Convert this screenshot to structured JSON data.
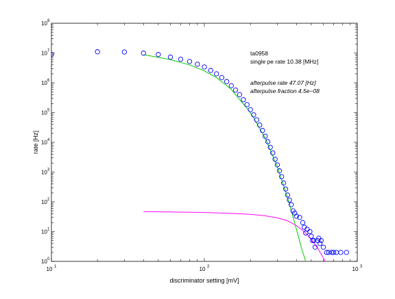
{
  "chart_data": {
    "type": "scatter",
    "title": "",
    "xlabel": "discriminator setting [mV]",
    "ylabel": "rate [Hz]",
    "xscale": "log",
    "yscale": "log",
    "xlim": [
      10,
      1000
    ],
    "ylim": [
      1,
      100000000
    ],
    "grid": false,
    "x_ticks": [
      {
        "base": "10",
        "exp": "1",
        "value": 10
      },
      {
        "base": "10",
        "exp": "2",
        "value": 100
      },
      {
        "base": "10",
        "exp": "3",
        "value": 1000
      }
    ],
    "y_ticks": [
      {
        "base": "10",
        "exp": "0",
        "value": 1
      },
      {
        "base": "10",
        "exp": "1",
        "value": 10
      },
      {
        "base": "10",
        "exp": "2",
        "value": 100
      },
      {
        "base": "10",
        "exp": "3",
        "value": 1000
      },
      {
        "base": "10",
        "exp": "4",
        "value": 10000
      },
      {
        "base": "10",
        "exp": "5",
        "value": 100000
      },
      {
        "base": "10",
        "exp": "6",
        "value": 1000000
      },
      {
        "base": "10",
        "exp": "7",
        "value": 10000000
      },
      {
        "base": "10",
        "exp": "8",
        "value": 100000000
      }
    ],
    "annotations": [
      "ta0958",
      "single pe rate 10.38 [MHz]",
      "afterpulse rate 47.07 [Hz]",
      "afterpulse fraction 4.5e−08"
    ],
    "series": [
      {
        "kind": "markers",
        "marker": "circle",
        "color": "#0000ff",
        "points": [
          [
            10,
            9000000
          ],
          [
            20,
            11000000
          ],
          [
            30,
            10800000
          ],
          [
            40,
            9900000
          ],
          [
            50,
            8900000
          ],
          [
            60,
            7300000
          ],
          [
            70,
            6200000
          ],
          [
            80,
            5200000
          ],
          [
            90,
            4200000
          ],
          [
            100,
            3400000
          ],
          [
            110,
            2600000
          ],
          [
            120,
            2000000
          ],
          [
            130,
            1500000
          ],
          [
            140,
            1100000
          ],
          [
            150,
            800000
          ],
          [
            160,
            570000
          ],
          [
            170,
            400000
          ],
          [
            180,
            270000
          ],
          [
            190,
            185000
          ],
          [
            200,
            125000
          ],
          [
            210,
            84000
          ],
          [
            220,
            57000
          ],
          [
            230,
            38000
          ],
          [
            240,
            25000
          ],
          [
            250,
            16000
          ],
          [
            260,
            10500
          ],
          [
            270,
            6800
          ],
          [
            280,
            4400
          ],
          [
            290,
            2700
          ],
          [
            300,
            1750
          ],
          [
            310,
            1100
          ],
          [
            320,
            700
          ],
          [
            330,
            430
          ],
          [
            340,
            270
          ],
          [
            350,
            170
          ],
          [
            360,
            115
          ],
          [
            370,
            80
          ],
          [
            380,
            50
          ],
          [
            390,
            42
          ],
          [
            400,
            33
          ],
          [
            420,
            30
          ],
          [
            440,
            20
          ],
          [
            450,
            14
          ],
          [
            460,
            9
          ],
          [
            470,
            12
          ],
          [
            490,
            10
          ],
          [
            500,
            7
          ],
          [
            510,
            5
          ],
          [
            520,
            5
          ],
          [
            530,
            3
          ],
          [
            550,
            5
          ],
          [
            560,
            6
          ],
          [
            570,
            4
          ],
          [
            580,
            5
          ],
          [
            600,
            3
          ],
          [
            630,
            2
          ],
          [
            650,
            2
          ],
          [
            680,
            2
          ],
          [
            700,
            2
          ],
          [
            730,
            2
          ],
          [
            780,
            2
          ],
          [
            850,
            2
          ]
        ]
      },
      {
        "kind": "line",
        "color": "#00cc00",
        "points": [
          [
            40,
            8800000
          ],
          [
            60,
            6000000
          ],
          [
            80,
            4000000
          ],
          [
            100,
            2500000
          ],
          [
            120,
            1500000
          ],
          [
            150,
            600000
          ],
          [
            200,
            100000
          ],
          [
            250,
            14000
          ],
          [
            300,
            1500
          ],
          [
            350,
            140
          ],
          [
            400,
            12
          ],
          [
            430,
            3
          ],
          [
            460,
            1
          ]
        ]
      },
      {
        "kind": "line",
        "color": "#ff00ff",
        "points": [
          [
            40,
            47
          ],
          [
            100,
            44
          ],
          [
            150,
            41
          ],
          [
            200,
            38
          ],
          [
            250,
            34
          ],
          [
            300,
            29
          ],
          [
            350,
            23
          ],
          [
            400,
            16
          ],
          [
            450,
            10
          ],
          [
            500,
            5.5
          ],
          [
            550,
            2.8
          ],
          [
            600,
            1.3
          ],
          [
            615,
            1
          ]
        ]
      }
    ]
  }
}
